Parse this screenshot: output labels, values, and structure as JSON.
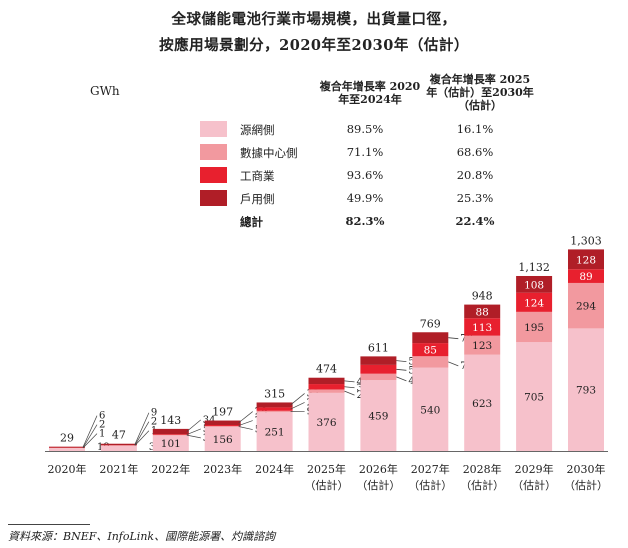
{
  "title_line1": "全球儲能電池行業市場規模，出貨量口徑，",
  "title_line2": "按應用場景劃分，2020年至2030年（估計）",
  "unit": "GWh",
  "cagr_header_1": "複合年增長率 2020年至2024年",
  "cagr_header_2": "複合年增長率 2025年（估計）至2030年（估計）",
  "legend": [
    {
      "label": "源網側",
      "cagr1": "89.5%",
      "cagr2": "16.1%",
      "color": "#f6c1cb"
    },
    {
      "label": "數據中心側",
      "cagr1": "71.1%",
      "cagr2": "68.6%",
      "color": "#f2999f"
    },
    {
      "label": "工商業",
      "cagr1": "93.6%",
      "cagr2": "20.8%",
      "color": "#e8202e"
    },
    {
      "label": "戶用側",
      "cagr1": "49.9%",
      "cagr2": "25.3%",
      "color": "#b01e27"
    }
  ],
  "total_row": {
    "label": "總計",
    "cagr1": "82.3%",
    "cagr2": "22.4%"
  },
  "source": "資料來源：BNEF、InfoLink、國際能源署、灼識諮詢",
  "chart_data": {
    "type": "bar",
    "stacked": true,
    "title": "全球儲能電池行業市場規模，出貨量口徑，按應用場景劃分，2020年至2030年（估計）",
    "ylabel": "GWh",
    "categories": [
      "2020年",
      "2021年",
      "2022年",
      "2023年",
      "2024年",
      "2025年（估計）",
      "2026年（估計）",
      "2027年（估計）",
      "2028年（估計）",
      "2029年（估計）",
      "2030年（估計）"
    ],
    "series": [
      {
        "name": "源網側",
        "values": [
          19,
          35,
          101,
          156,
          251,
          376,
          459,
          540,
          623,
          705,
          793
        ]
      },
      {
        "name": "數據中心側",
        "values": [
          1,
          1,
          3,
          5,
          9,
          22,
          41,
          73,
          123,
          195,
          294
        ]
      },
      {
        "name": "工商業",
        "values": [
          2,
          2,
          5,
          7,
          22,
          35,
          57,
          85,
          113,
          124,
          89
        ]
      },
      {
        "name": "戶用側",
        "values": [
          6,
          9,
          34,
          29,
          32,
          41,
          55,
          70,
          88,
          108,
          128
        ]
      }
    ],
    "totals": [
      "29",
      "47",
      "143",
      "197",
      "315",
      "474",
      "611",
      "769",
      "948",
      "1,132",
      "1,303"
    ]
  }
}
